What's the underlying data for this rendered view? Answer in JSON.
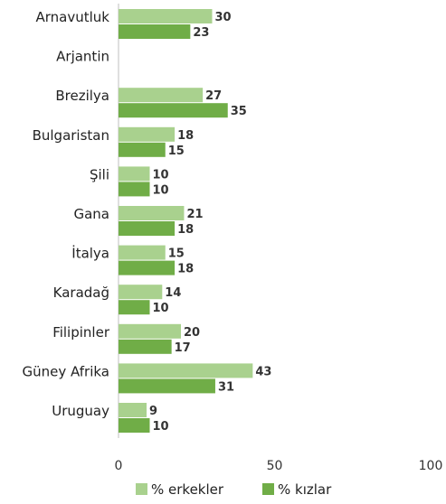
{
  "chart_data": {
    "type": "bar",
    "orientation": "horizontal",
    "title": "",
    "xlabel": "",
    "ylabel": "",
    "categories": [
      "Arnavutluk",
      "Arjantin",
      "Brezilya",
      "Bulgaristan",
      "Şili",
      "Gana",
      "İtalya",
      "Karadağ",
      "Filipinler",
      "Güney Afrika",
      "Uruguay"
    ],
    "series": [
      {
        "name": "% erkekler",
        "color": "#a9d18e",
        "values": [
          30,
          null,
          27,
          18,
          10,
          21,
          15,
          14,
          20,
          43,
          9
        ]
      },
      {
        "name": "% kızlar",
        "color": "#70ad47",
        "values": [
          23,
          null,
          35,
          15,
          10,
          18,
          18,
          10,
          17,
          31,
          10
        ]
      }
    ],
    "xlim": [
      0,
      100
    ],
    "xticks": [
      0,
      50,
      100
    ],
    "grid": false,
    "legend_position": "bottom"
  }
}
